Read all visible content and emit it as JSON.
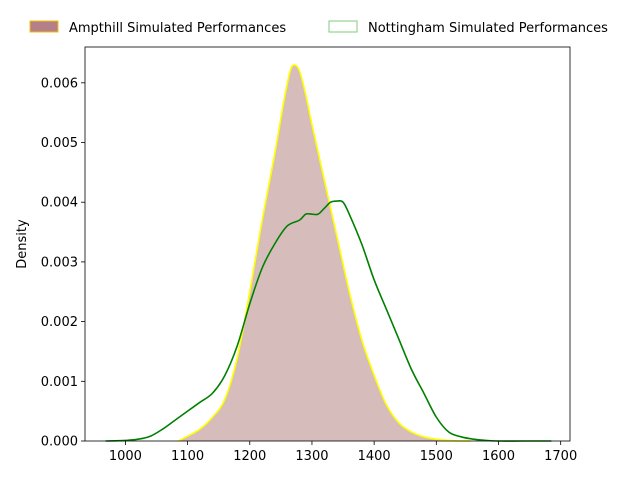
{
  "chart_data": {
    "type": "area",
    "title": "",
    "xlabel": "",
    "ylabel": "Density",
    "xlim": [
      935,
      1715
    ],
    "ylim": [
      0,
      0.0066
    ],
    "xticks": [
      1000,
      1100,
      1200,
      1300,
      1400,
      1500,
      1600,
      1700
    ],
    "xtick_labels": [
      "1000",
      "1100",
      "1200",
      "1300",
      "1400",
      "1500",
      "1600",
      "1700"
    ],
    "yticks": [
      0,
      0.001,
      0.002,
      0.003,
      0.004,
      0.005,
      0.006
    ],
    "ytick_labels": [
      "0.000",
      "0.001",
      "0.002",
      "0.003",
      "0.004",
      "0.005",
      "0.006"
    ],
    "grid": false,
    "legend_placement": "top-center-outside",
    "series": [
      {
        "name": "Ampthill Simulated Performances",
        "style": "filled",
        "fill_color": "#bc8f8f",
        "edge_color": "#ffff00",
        "legend_fill": "#b57f8a",
        "legend_edge": "#f0c000",
        "x": [
          1085,
          1100,
          1120,
          1140,
          1160,
          1180,
          1200,
          1220,
          1240,
          1255,
          1265,
          1272,
          1280,
          1290,
          1300,
          1315,
          1330,
          1345,
          1360,
          1380,
          1400,
          1420,
          1440,
          1460,
          1480,
          1500,
          1520,
          1540,
          1555
        ],
        "y": [
          0.0,
          8e-05,
          0.0002,
          0.0004,
          0.0007,
          0.0014,
          0.0025,
          0.0037,
          0.0048,
          0.0057,
          0.0062,
          0.0063,
          0.0062,
          0.0058,
          0.0053,
          0.0046,
          0.0039,
          0.0032,
          0.0025,
          0.0017,
          0.0011,
          0.0006,
          0.0003,
          0.00015,
          7e-05,
          3e-05,
          1e-05,
          0.0,
          0.0
        ]
      },
      {
        "name": "Nottingham Simulated Performances",
        "style": "line",
        "line_color": "#008000",
        "legend_fill": "#ffffff",
        "legend_edge": "#7fc97f",
        "x": [
          968,
          1000,
          1020,
          1040,
          1060,
          1080,
          1100,
          1120,
          1140,
          1160,
          1180,
          1200,
          1220,
          1240,
          1260,
          1280,
          1290,
          1300,
          1310,
          1320,
          1330,
          1340,
          1350,
          1360,
          1380,
          1400,
          1420,
          1440,
          1460,
          1480,
          1500,
          1520,
          1540,
          1560,
          1580,
          1600,
          1640,
          1685
        ],
        "y": [
          0.0,
          1e-05,
          3e-05,
          8e-05,
          0.0002,
          0.00035,
          0.0005,
          0.00065,
          0.0008,
          0.0011,
          0.0016,
          0.0023,
          0.0029,
          0.0033,
          0.0036,
          0.0037,
          0.0038,
          0.0038,
          0.0038,
          0.0039,
          0.004,
          0.00402,
          0.004,
          0.0038,
          0.0033,
          0.0027,
          0.0022,
          0.0017,
          0.0012,
          0.0008,
          0.0004,
          0.00015,
          7e-05,
          3e-05,
          1e-05,
          0.0,
          0.0,
          0.0
        ]
      }
    ]
  }
}
